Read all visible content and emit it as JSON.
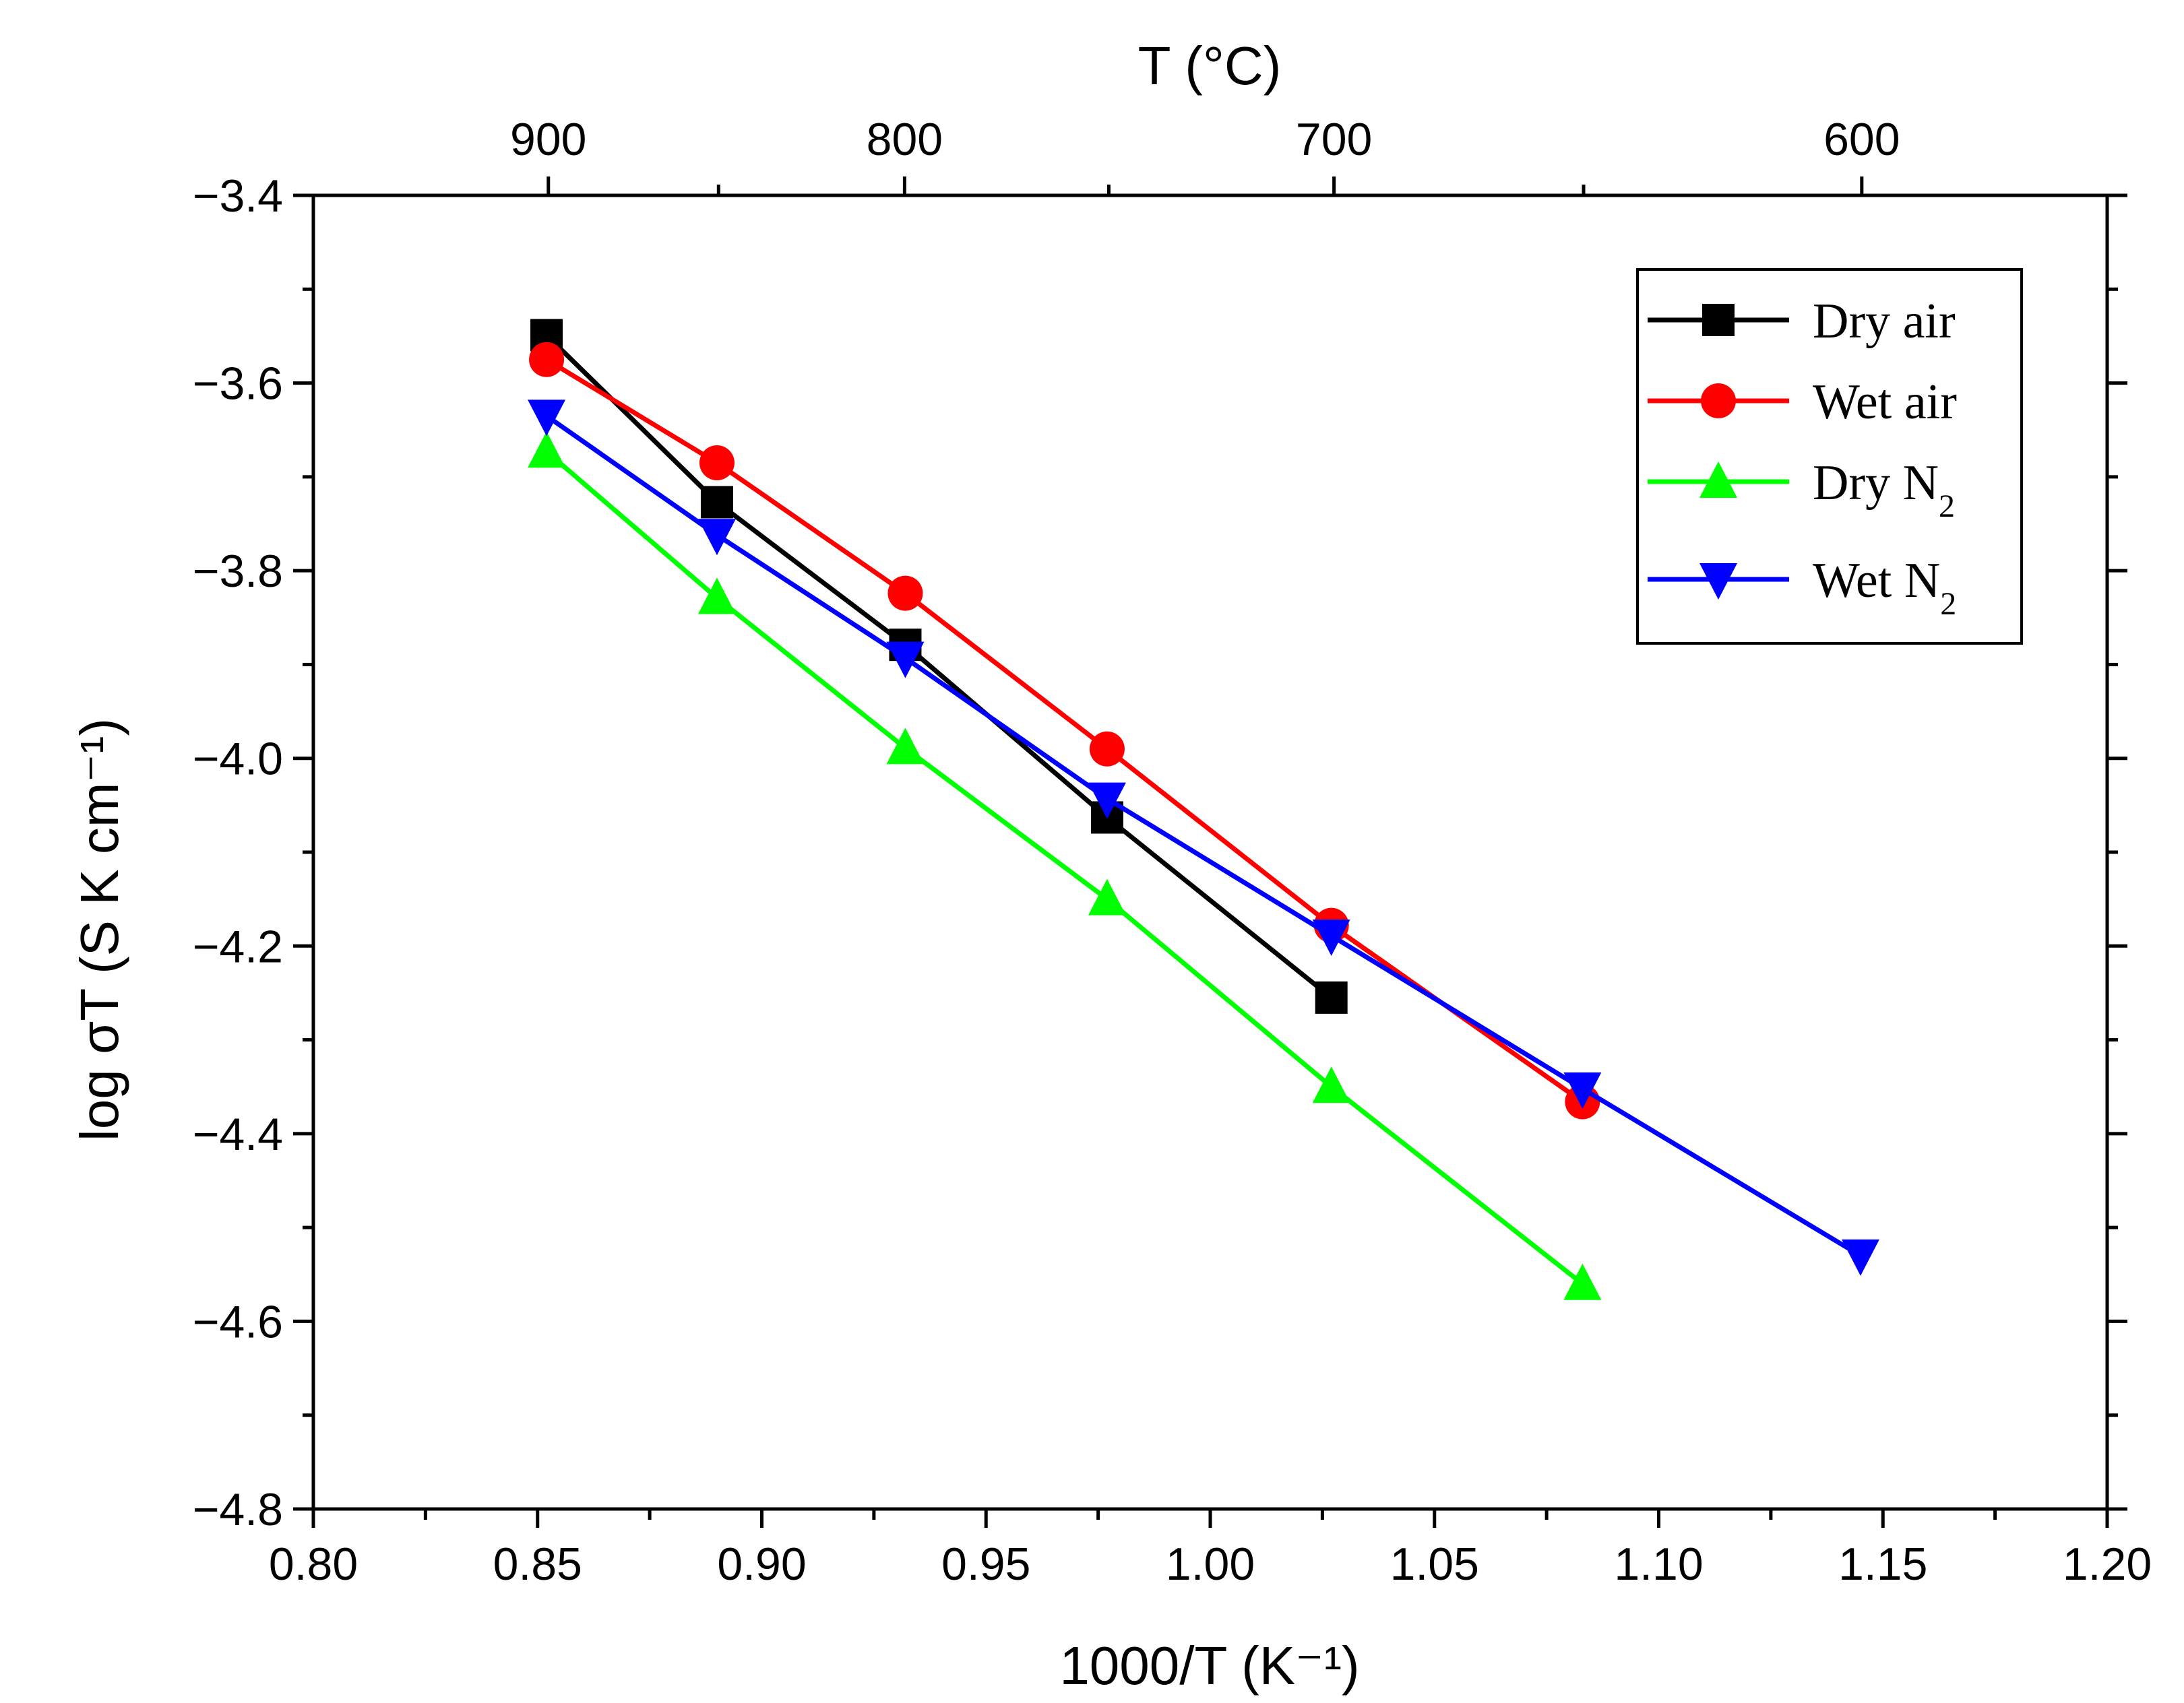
{
  "chart_data": {
    "type": "line",
    "xlabel": "1000/T (K⁻¹)",
    "x2label": "T (°C)",
    "ylabel": "log σT (S K cm⁻¹)",
    "xlim": [
      0.8,
      1.2
    ],
    "ylim": [
      -4.8,
      -3.4
    ],
    "x_ticks": [
      0.8,
      0.85,
      0.9,
      0.95,
      1.0,
      1.05,
      1.1,
      1.15,
      1.2
    ],
    "x_tick_labels": [
      "0.80",
      "0.85",
      "0.90",
      "0.95",
      "1.00",
      "1.05",
      "1.10",
      "1.15",
      "1.20"
    ],
    "y_ticks": [
      -3.4,
      -3.6,
      -3.8,
      -4.0,
      -4.2,
      -4.4,
      -4.6,
      -4.8
    ],
    "y_tick_labels": [
      "−3.4",
      "−3.6",
      "−3.8",
      "−4.0",
      "−4.2",
      "−4.4",
      "−4.6",
      "−4.8"
    ],
    "top_ticks_celsius": [
      900,
      800,
      700,
      600
    ],
    "top_tick_labels": [
      "900",
      "800",
      "700",
      "600"
    ],
    "grid": false,
    "legend_position": "top-right",
    "series": [
      {
        "name": "Dry air",
        "color": "#000000",
        "marker": "square",
        "x": [
          0.852,
          0.89,
          0.932,
          0.977,
          1.027
        ],
        "y": [
          -3.549,
          -3.727,
          -3.879,
          -4.063,
          -4.255
        ]
      },
      {
        "name": "Wet air",
        "color": "#ff0000",
        "marker": "circle",
        "x": [
          0.852,
          0.89,
          0.932,
          0.977,
          1.027,
          1.083
        ],
        "y": [
          -3.575,
          -3.685,
          -3.824,
          -3.99,
          -4.178,
          -4.366
        ]
      },
      {
        "name": "Dry N₂",
        "color": "#00ff00",
        "marker": "triangle-up",
        "x": [
          0.852,
          0.89,
          0.932,
          0.977,
          1.027,
          1.083
        ],
        "y": [
          -3.673,
          -3.829,
          -3.989,
          -4.15,
          -4.35,
          -4.56
        ]
      },
      {
        "name": "Wet N₂",
        "color": "#0000ff",
        "marker": "triangle-down",
        "x": [
          0.852,
          0.89,
          0.932,
          0.977,
          1.027,
          1.083,
          1.145
        ],
        "y": [
          -3.635,
          -3.762,
          -3.893,
          -4.043,
          -4.189,
          -4.352,
          -4.53
        ]
      }
    ]
  }
}
